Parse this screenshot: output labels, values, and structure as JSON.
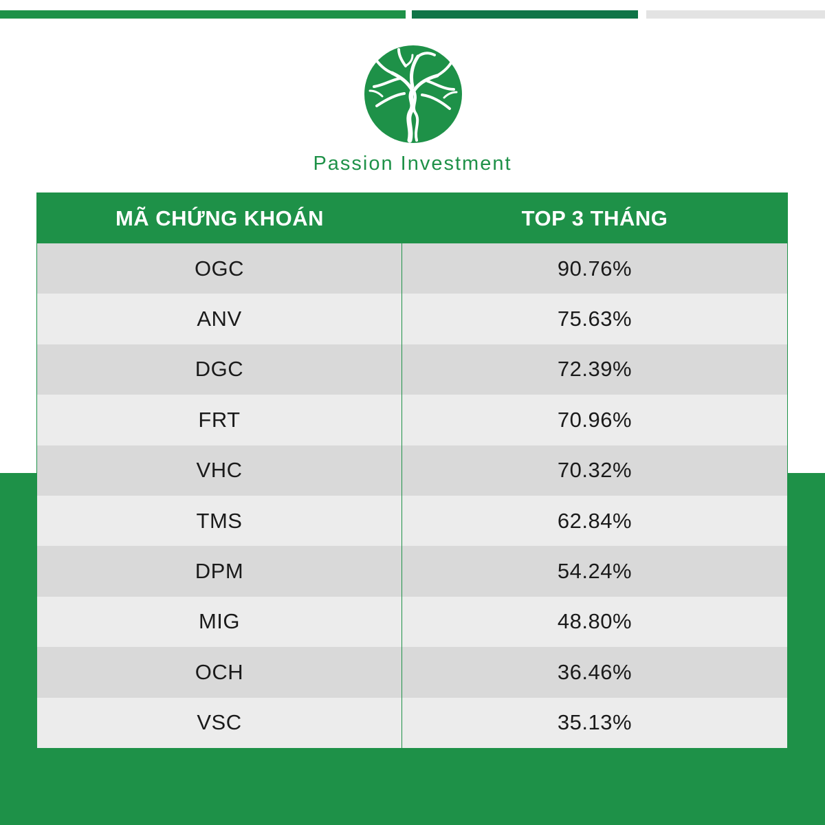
{
  "brand": {
    "name": "Passion Investment",
    "logo_icon": "tree-in-circle-logo",
    "primary_color": "#1e9148",
    "secondary_color": "#0f7447"
  },
  "table": {
    "headers": [
      "MÃ CHỨNG KHOÁN",
      "TOP 3 THÁNG"
    ],
    "rows": [
      {
        "ticker": "OGC",
        "value": "90.76%"
      },
      {
        "ticker": "ANV",
        "value": "75.63%"
      },
      {
        "ticker": "DGC",
        "value": "72.39%"
      },
      {
        "ticker": "FRT",
        "value": "70.96%"
      },
      {
        "ticker": "VHC",
        "value": "70.32%"
      },
      {
        "ticker": "TMS",
        "value": "62.84%"
      },
      {
        "ticker": "DPM",
        "value": "54.24%"
      },
      {
        "ticker": "MIG",
        "value": "48.80%"
      },
      {
        "ticker": "OCH",
        "value": "36.46%"
      },
      {
        "ticker": "VSC",
        "value": "35.13%"
      }
    ]
  }
}
